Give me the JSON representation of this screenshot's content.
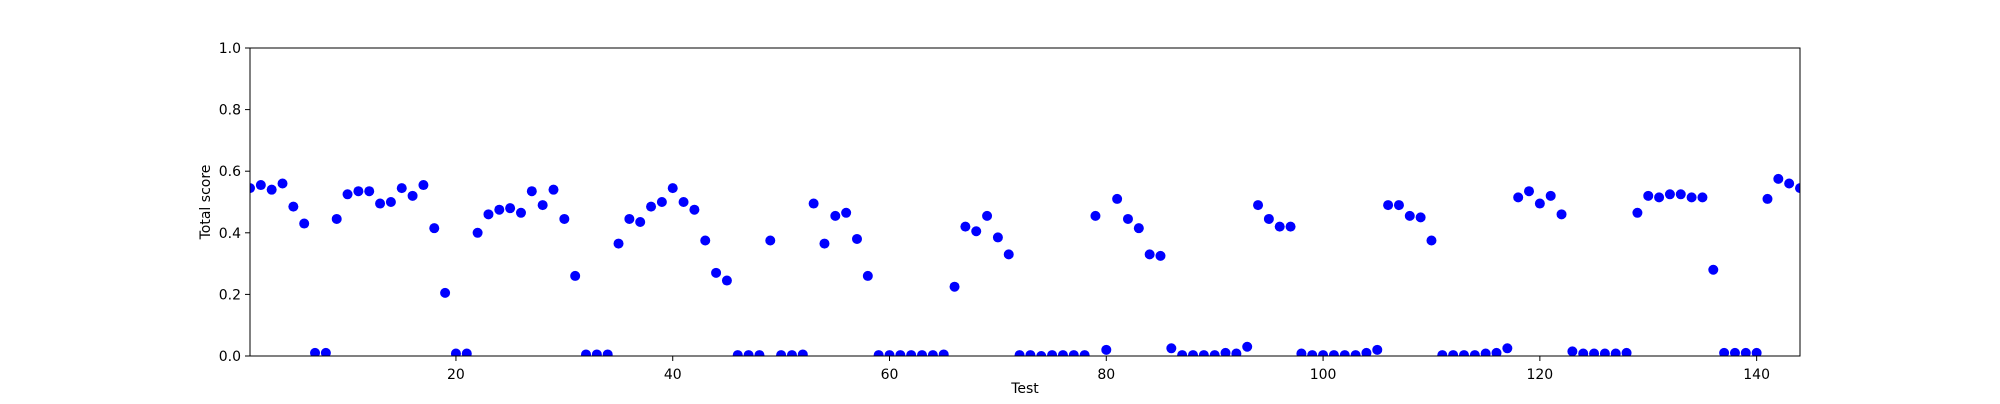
{
  "chart_data": {
    "type": "scatter",
    "title": "",
    "xlabel": "Test",
    "ylabel": "Total score",
    "xlim": [
      1,
      144
    ],
    "ylim": [
      0.0,
      1.0
    ],
    "xticks": [
      20,
      40,
      60,
      80,
      100,
      120,
      140
    ],
    "xtick_labels": [
      "20",
      "40",
      "60",
      "80",
      "100",
      "120",
      "140"
    ],
    "yticks": [
      0.0,
      0.2,
      0.4,
      0.6,
      0.8,
      1.0
    ],
    "ytick_labels": [
      "0.0",
      "0.2",
      "0.4",
      "0.6",
      "0.8",
      "1.0"
    ],
    "grid": false,
    "marker_color": "#0000ff",
    "series": [
      {
        "x": [
          1,
          2,
          3,
          4,
          5,
          6,
          7,
          8,
          9,
          10,
          11,
          12,
          13,
          14,
          15,
          16,
          17,
          18,
          19,
          20,
          21,
          22,
          23,
          24,
          25,
          26,
          27,
          28,
          29,
          30,
          31,
          32,
          33,
          34,
          35,
          36,
          37,
          38,
          39,
          40,
          41,
          42,
          43,
          44,
          45,
          46,
          47,
          48,
          49,
          50,
          51,
          52,
          53,
          54,
          55,
          56,
          57,
          58,
          59,
          60,
          61,
          62,
          63,
          64,
          65,
          66,
          67,
          68,
          69,
          70,
          71,
          72,
          73,
          74,
          75,
          76,
          77,
          78,
          79,
          80,
          81,
          82,
          83,
          84,
          85,
          86,
          87,
          88,
          89,
          90,
          91,
          92,
          93,
          94,
          95,
          96,
          97,
          98,
          99,
          100,
          101,
          102,
          103,
          104,
          105,
          106,
          107,
          108,
          109,
          110,
          111,
          112,
          113,
          114,
          115,
          116,
          117,
          118,
          119,
          120,
          121,
          122,
          123,
          124,
          125,
          126,
          127,
          128,
          129,
          130,
          131,
          132,
          133,
          134,
          135,
          136,
          137,
          138,
          139,
          140,
          141,
          142,
          143,
          144
        ],
        "y": [
          0.545,
          0.555,
          0.54,
          0.56,
          0.485,
          0.43,
          0.01,
          0.01,
          0.445,
          0.525,
          0.535,
          0.535,
          0.495,
          0.5,
          0.545,
          0.52,
          0.555,
          0.415,
          0.205,
          0.008,
          0.008,
          0.4,
          0.46,
          0.475,
          0.48,
          0.465,
          0.535,
          0.49,
          0.54,
          0.445,
          0.26,
          0.005,
          0.005,
          0.005,
          0.365,
          0.445,
          0.435,
          0.485,
          0.5,
          0.545,
          0.5,
          0.475,
          0.375,
          0.27,
          0.245,
          0.003,
          0.003,
          0.003,
          0.375,
          0.003,
          0.003,
          0.005,
          0.495,
          0.365,
          0.455,
          0.465,
          0.38,
          0.26,
          0.003,
          0.003,
          0.003,
          0.003,
          0.003,
          0.003,
          0.005,
          0.225,
          0.42,
          0.405,
          0.455,
          0.385,
          0.33,
          0.003,
          0.003,
          0.0,
          0.003,
          0.003,
          0.003,
          0.003,
          0.455,
          0.02,
          0.51,
          0.445,
          0.415,
          0.33,
          0.325,
          0.025,
          0.003,
          0.003,
          0.003,
          0.003,
          0.01,
          0.008,
          0.03,
          0.49,
          0.445,
          0.42,
          0.42,
          0.008,
          0.003,
          0.003,
          0.003,
          0.003,
          0.003,
          0.01,
          0.02,
          0.49,
          0.49,
          0.455,
          0.45,
          0.375,
          0.003,
          0.003,
          0.003,
          0.003,
          0.008,
          0.01,
          0.025,
          0.515,
          0.535,
          0.495,
          0.52,
          0.46,
          0.015,
          0.008,
          0.008,
          0.008,
          0.008,
          0.01,
          0.465,
          0.52,
          0.515,
          0.525,
          0.525,
          0.515,
          0.515,
          0.28,
          0.01,
          0.01,
          0.01,
          0.01,
          0.51,
          0.575,
          0.56,
          0.545
        ]
      }
    ]
  }
}
